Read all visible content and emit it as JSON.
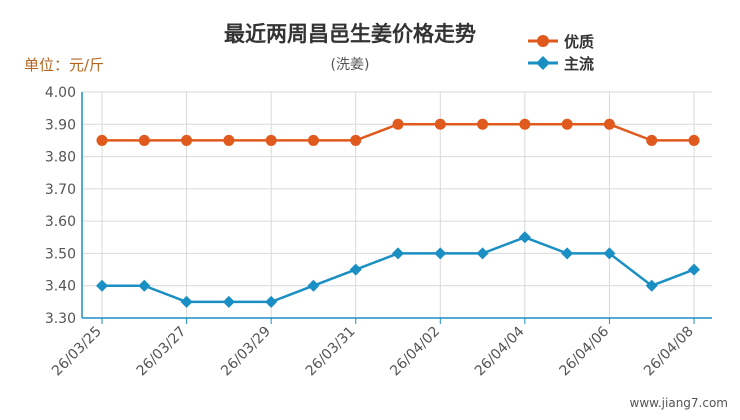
{
  "unit_label": "单位：元/斤",
  "watermark": "www.jiang7.com",
  "chart_data": {
    "type": "line",
    "title": "最近两周昌邑生姜价格走势",
    "subtitle": "(洗姜)",
    "xlabel": "",
    "ylabel": "单位：元/斤",
    "ylim": [
      3.3,
      4.0
    ],
    "yticks": [
      "4.00",
      "3.90",
      "3.80",
      "3.70",
      "3.60",
      "3.50",
      "3.40",
      "3.30"
    ],
    "x": [
      "26/03/25",
      "26/03/26",
      "26/03/27",
      "26/03/28",
      "26/03/29",
      "26/03/30",
      "26/03/31",
      "26/04/01",
      "26/04/02",
      "26/04/03",
      "26/04/04",
      "26/04/05",
      "26/04/06",
      "26/04/07",
      "26/04/08"
    ],
    "x_tick_labels": [
      "26/03/25",
      "26/03/27",
      "26/03/29",
      "26/03/31",
      "26/04/02",
      "26/04/04",
      "26/04/06",
      "26/04/08"
    ],
    "series": [
      {
        "name": "优质",
        "color": "#e05a1e",
        "marker": "circle",
        "values": [
          3.85,
          3.85,
          3.85,
          3.85,
          3.85,
          3.85,
          3.85,
          3.9,
          3.9,
          3.9,
          3.9,
          3.9,
          3.9,
          3.85,
          3.85
        ]
      },
      {
        "name": "主流",
        "color": "#1a8fc3",
        "marker": "diamond",
        "values": [
          3.4,
          3.4,
          3.35,
          3.35,
          3.35,
          3.4,
          3.45,
          3.5,
          3.5,
          3.5,
          3.55,
          3.5,
          3.5,
          3.4,
          3.45
        ]
      }
    ],
    "legend": "top-right",
    "grid": true
  }
}
